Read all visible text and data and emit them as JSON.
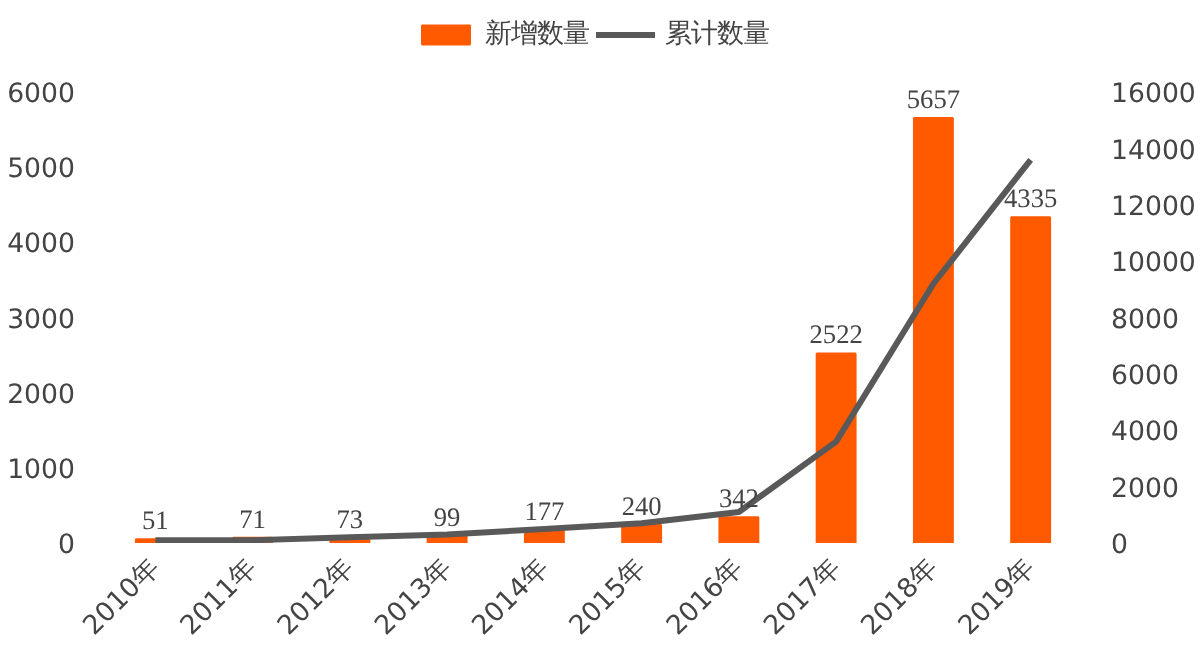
{
  "chart_data": {
    "type": "bar",
    "categories": [
      "2010年",
      "2011年",
      "2012年",
      "2013年",
      "2014年",
      "2015年",
      "2016年",
      "2017年",
      "2018年",
      "2019年"
    ],
    "series": [
      {
        "name": "新增数量",
        "color": "#ff5a00",
        "values": [
          51,
          71,
          73,
          99,
          177,
          240,
          342,
          2522,
          5657,
          4335
        ],
        "value_labels": [
          "51",
          "71",
          "73",
          "99",
          "177",
          "240",
          "342",
          "2522",
          "5657",
          "4335"
        ]
      },
      {
        "name": "累计数量",
        "type": "line",
        "axis": "y2",
        "color": "#595959",
        "values": [
          100,
          100,
          200,
          300,
          500,
          700,
          1100,
          3600,
          9200,
          13600
        ]
      }
    ],
    "ylim": [
      0,
      7000
    ],
    "yticks": [
      0,
      1000,
      2000,
      3000,
      4000,
      5000,
      6000
    ],
    "y2lim": [
      0,
      18667
    ],
    "y2ticks": [
      0,
      2000,
      4000,
      6000,
      8000,
      10000,
      12000,
      14000,
      16000
    ],
    "legend": "top",
    "grid": false
  }
}
